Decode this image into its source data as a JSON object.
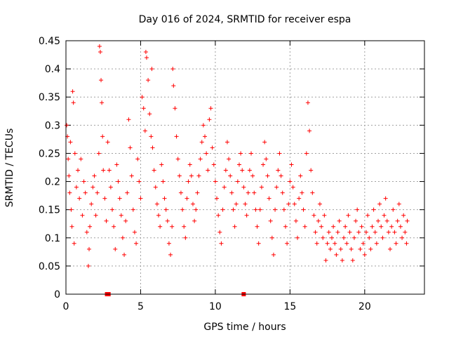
{
  "chart_data": {
    "type": "scatter",
    "title": "Day 016 of 2024, SRMTID for receiver espa",
    "xlabel": "GPS time / hours",
    "ylabel": "SRMTID / TECUs",
    "xlim": [
      0,
      24
    ],
    "ylim": [
      0,
      0.45
    ],
    "x_ticks": [
      0,
      5,
      10,
      15,
      20
    ],
    "x_tick_labels": [
      "0",
      "5",
      "10",
      "15",
      "20"
    ],
    "y_ticks": [
      0,
      0.05,
      0.1,
      0.15,
      0.2,
      0.25,
      0.3,
      0.35,
      0.4,
      0.45
    ],
    "y_tick_labels": [
      "0",
      "0.05",
      "0.1",
      "0.15",
      "0.2",
      "0.25",
      "0.3",
      "0.35",
      "0.4",
      "0.45"
    ],
    "grid": true,
    "marker": "plus",
    "color": "#ff0000",
    "baseline_markers": [
      {
        "x": 2.75,
        "y": 0
      },
      {
        "x": 2.85,
        "y": 0
      },
      {
        "x": 11.9,
        "y": 0
      }
    ],
    "series": [
      {
        "name": "SRMTID",
        "points": [
          [
            0.05,
            0.3
          ],
          [
            0.1,
            0.28
          ],
          [
            0.15,
            0.24
          ],
          [
            0.2,
            0.21
          ],
          [
            0.25,
            0.18
          ],
          [
            0.3,
            0.27
          ],
          [
            0.35,
            0.15
          ],
          [
            0.4,
            0.12
          ],
          [
            0.45,
            0.36
          ],
          [
            0.5,
            0.34
          ],
          [
            0.55,
            0.09
          ],
          [
            0.6,
            0.25
          ],
          [
            0.7,
            0.19
          ],
          [
            0.8,
            0.22
          ],
          [
            0.9,
            0.17
          ],
          [
            1.0,
            0.24
          ],
          [
            1.1,
            0.14
          ],
          [
            1.2,
            0.2
          ],
          [
            1.3,
            0.18
          ],
          [
            1.4,
            0.11
          ],
          [
            1.5,
            0.05
          ],
          [
            1.55,
            0.08
          ],
          [
            1.6,
            0.12
          ],
          [
            1.7,
            0.16
          ],
          [
            1.8,
            0.19
          ],
          [
            1.9,
            0.21
          ],
          [
            2.0,
            0.14
          ],
          [
            2.1,
            0.18
          ],
          [
            2.2,
            0.25
          ],
          [
            2.25,
            0.44
          ],
          [
            2.3,
            0.43
          ],
          [
            2.35,
            0.38
          ],
          [
            2.4,
            0.34
          ],
          [
            2.45,
            0.28
          ],
          [
            2.5,
            0.22
          ],
          [
            2.6,
            0.17
          ],
          [
            2.7,
            0.13
          ],
          [
            2.8,
            0.27
          ],
          [
            2.9,
            0.22
          ],
          [
            3.0,
            0.19
          ],
          [
            3.1,
            0.15
          ],
          [
            3.2,
            0.12
          ],
          [
            3.3,
            0.08
          ],
          [
            3.4,
            0.23
          ],
          [
            3.5,
            0.2
          ],
          [
            3.6,
            0.17
          ],
          [
            3.7,
            0.14
          ],
          [
            3.8,
            0.1
          ],
          [
            3.9,
            0.07
          ],
          [
            4.0,
            0.13
          ],
          [
            4.1,
            0.18
          ],
          [
            4.2,
            0.31
          ],
          [
            4.3,
            0.26
          ],
          [
            4.4,
            0.21
          ],
          [
            4.5,
            0.15
          ],
          [
            4.6,
            0.11
          ],
          [
            4.7,
            0.09
          ],
          [
            4.8,
            0.24
          ],
          [
            4.9,
            0.2
          ],
          [
            5.0,
            0.17
          ],
          [
            5.1,
            0.35
          ],
          [
            5.2,
            0.33
          ],
          [
            5.3,
            0.29
          ],
          [
            5.35,
            0.43
          ],
          [
            5.4,
            0.42
          ],
          [
            5.5,
            0.38
          ],
          [
            5.6,
            0.32
          ],
          [
            5.7,
            0.28
          ],
          [
            5.75,
            0.4
          ],
          [
            5.8,
            0.26
          ],
          [
            5.9,
            0.22
          ],
          [
            6.0,
            0.19
          ],
          [
            6.1,
            0.16
          ],
          [
            6.2,
            0.14
          ],
          [
            6.3,
            0.12
          ],
          [
            6.4,
            0.23
          ],
          [
            6.5,
            0.2
          ],
          [
            6.6,
            0.17
          ],
          [
            6.7,
            0.15
          ],
          [
            6.8,
            0.13
          ],
          [
            6.9,
            0.09
          ],
          [
            7.0,
            0.07
          ],
          [
            7.1,
            0.12
          ],
          [
            7.15,
            0.4
          ],
          [
            7.2,
            0.37
          ],
          [
            7.3,
            0.33
          ],
          [
            7.4,
            0.28
          ],
          [
            7.5,
            0.24
          ],
          [
            7.6,
            0.21
          ],
          [
            7.7,
            0.18
          ],
          [
            7.8,
            0.15
          ],
          [
            7.9,
            0.12
          ],
          [
            8.0,
            0.1
          ],
          [
            8.1,
            0.17
          ],
          [
            8.2,
            0.2
          ],
          [
            8.3,
            0.23
          ],
          [
            8.4,
            0.21
          ],
          [
            8.5,
            0.16
          ],
          [
            8.6,
            0.13
          ],
          [
            8.7,
            0.15
          ],
          [
            8.8,
            0.18
          ],
          [
            8.9,
            0.21
          ],
          [
            9.0,
            0.24
          ],
          [
            9.1,
            0.27
          ],
          [
            9.2,
            0.3
          ],
          [
            9.3,
            0.28
          ],
          [
            9.4,
            0.25
          ],
          [
            9.5,
            0.22
          ],
          [
            9.6,
            0.31
          ],
          [
            9.7,
            0.33
          ],
          [
            9.8,
            0.26
          ],
          [
            9.9,
            0.23
          ],
          [
            10.0,
            0.2
          ],
          [
            10.1,
            0.17
          ],
          [
            10.2,
            0.14
          ],
          [
            10.3,
            0.11
          ],
          [
            10.4,
            0.09
          ],
          [
            10.5,
            0.15
          ],
          [
            10.6,
            0.19
          ],
          [
            10.7,
            0.22
          ],
          [
            10.8,
            0.27
          ],
          [
            10.9,
            0.24
          ],
          [
            11.0,
            0.21
          ],
          [
            11.1,
            0.18
          ],
          [
            11.2,
            0.15
          ],
          [
            11.3,
            0.12
          ],
          [
            11.4,
            0.16
          ],
          [
            11.5,
            0.2
          ],
          [
            11.6,
            0.23
          ],
          [
            11.7,
            0.25
          ],
          [
            11.8,
            0.22
          ],
          [
            11.9,
            0.19
          ],
          [
            12.0,
            0.16
          ],
          [
            12.1,
            0.14
          ],
          [
            12.2,
            0.18
          ],
          [
            12.3,
            0.22
          ],
          [
            12.4,
            0.25
          ],
          [
            12.5,
            0.21
          ],
          [
            12.6,
            0.18
          ],
          [
            12.7,
            0.15
          ],
          [
            12.8,
            0.12
          ],
          [
            12.9,
            0.09
          ],
          [
            13.0,
            0.15
          ],
          [
            13.1,
            0.19
          ],
          [
            13.2,
            0.23
          ],
          [
            13.3,
            0.27
          ],
          [
            13.4,
            0.24
          ],
          [
            13.5,
            0.21
          ],
          [
            13.6,
            0.17
          ],
          [
            13.7,
            0.13
          ],
          [
            13.8,
            0.1
          ],
          [
            13.9,
            0.07
          ],
          [
            14.0,
            0.15
          ],
          [
            14.1,
            0.19
          ],
          [
            14.2,
            0.22
          ],
          [
            14.3,
            0.25
          ],
          [
            14.4,
            0.21
          ],
          [
            14.5,
            0.18
          ],
          [
            14.6,
            0.15
          ],
          [
            14.7,
            0.12
          ],
          [
            14.8,
            0.09
          ],
          [
            14.9,
            0.16
          ],
          [
            15.0,
            0.2
          ],
          [
            15.1,
            0.23
          ],
          [
            15.2,
            0.19
          ],
          [
            15.3,
            0.16
          ],
          [
            15.4,
            0.13
          ],
          [
            15.5,
            0.1
          ],
          [
            15.6,
            0.17
          ],
          [
            15.7,
            0.21
          ],
          [
            15.8,
            0.18
          ],
          [
            15.9,
            0.15
          ],
          [
            16.0,
            0.12
          ],
          [
            16.1,
            0.25
          ],
          [
            16.2,
            0.34
          ],
          [
            16.3,
            0.29
          ],
          [
            16.4,
            0.22
          ],
          [
            16.5,
            0.18
          ],
          [
            16.6,
            0.14
          ],
          [
            16.7,
            0.11
          ],
          [
            16.8,
            0.09
          ],
          [
            16.9,
            0.13
          ],
          [
            17.0,
            0.16
          ],
          [
            17.1,
            0.12
          ],
          [
            17.2,
            0.1
          ],
          [
            17.3,
            0.14
          ],
          [
            17.4,
            0.06
          ],
          [
            17.5,
            0.09
          ],
          [
            17.6,
            0.11
          ],
          [
            17.7,
            0.08
          ],
          [
            17.8,
            0.1
          ],
          [
            17.9,
            0.12
          ],
          [
            18.0,
            0.09
          ],
          [
            18.1,
            0.07
          ],
          [
            18.2,
            0.11
          ],
          [
            18.3,
            0.13
          ],
          [
            18.4,
            0.08
          ],
          [
            18.5,
            0.06
          ],
          [
            18.6,
            0.1
          ],
          [
            18.7,
            0.12
          ],
          [
            18.8,
            0.09
          ],
          [
            18.9,
            0.14
          ],
          [
            19.0,
            0.11
          ],
          [
            19.1,
            0.08
          ],
          [
            19.2,
            0.06
          ],
          [
            19.3,
            0.1
          ],
          [
            19.4,
            0.13
          ],
          [
            19.5,
            0.15
          ],
          [
            19.6,
            0.11
          ],
          [
            19.7,
            0.08
          ],
          [
            19.8,
            0.12
          ],
          [
            19.9,
            0.09
          ],
          [
            20.0,
            0.07
          ],
          [
            20.1,
            0.11
          ],
          [
            20.2,
            0.14
          ],
          [
            20.3,
            0.1
          ],
          [
            20.4,
            0.08
          ],
          [
            20.5,
            0.12
          ],
          [
            20.6,
            0.15
          ],
          [
            20.7,
            0.11
          ],
          [
            20.8,
            0.09
          ],
          [
            20.9,
            0.13
          ],
          [
            21.0,
            0.16
          ],
          [
            21.1,
            0.12
          ],
          [
            21.2,
            0.1
          ],
          [
            21.3,
            0.14
          ],
          [
            21.4,
            0.17
          ],
          [
            21.5,
            0.13
          ],
          [
            21.6,
            0.11
          ],
          [
            21.7,
            0.08
          ],
          [
            21.8,
            0.12
          ],
          [
            21.9,
            0.15
          ],
          [
            22.0,
            0.11
          ],
          [
            22.1,
            0.09
          ],
          [
            22.2,
            0.13
          ],
          [
            22.3,
            0.16
          ],
          [
            22.4,
            0.12
          ],
          [
            22.5,
            0.1
          ],
          [
            22.6,
            0.14
          ],
          [
            22.7,
            0.11
          ],
          [
            22.8,
            0.09
          ],
          [
            22.85,
            0.13
          ]
        ]
      }
    ]
  }
}
